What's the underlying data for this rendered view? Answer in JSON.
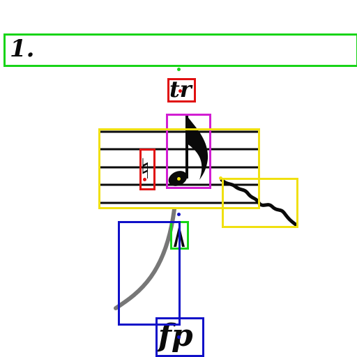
{
  "measure_number": "1.",
  "trill_label": "tr",
  "dynamic_label": "fp",
  "accidental_glyph": "♮",
  "colors": {
    "measure_box": "#18d418",
    "trill_box": "#e01010",
    "natural_box": "#e01010",
    "note_box": "#d21ed2",
    "staff_box": "#f0e010",
    "trill_line_box": "#f0e010",
    "accent_box": "#18d418",
    "slur_box": "#1010c8",
    "dynamic_box": "#1010c8",
    "ink": "#0a0a0a"
  },
  "annotations": [
    {
      "name": "measure-number-box",
      "color_key": "measure_box"
    },
    {
      "name": "trill-box",
      "color_key": "trill_box"
    },
    {
      "name": "note-box",
      "color_key": "note_box"
    },
    {
      "name": "staff-box",
      "color_key": "staff_box"
    },
    {
      "name": "natural-box",
      "color_key": "natural_box"
    },
    {
      "name": "trill-line-box",
      "color_key": "trill_line_box"
    },
    {
      "name": "accent-box",
      "color_key": "accent_box"
    },
    {
      "name": "slur-box",
      "color_key": "slur_box"
    },
    {
      "name": "dynamic-box",
      "color_key": "dynamic_box"
    }
  ]
}
